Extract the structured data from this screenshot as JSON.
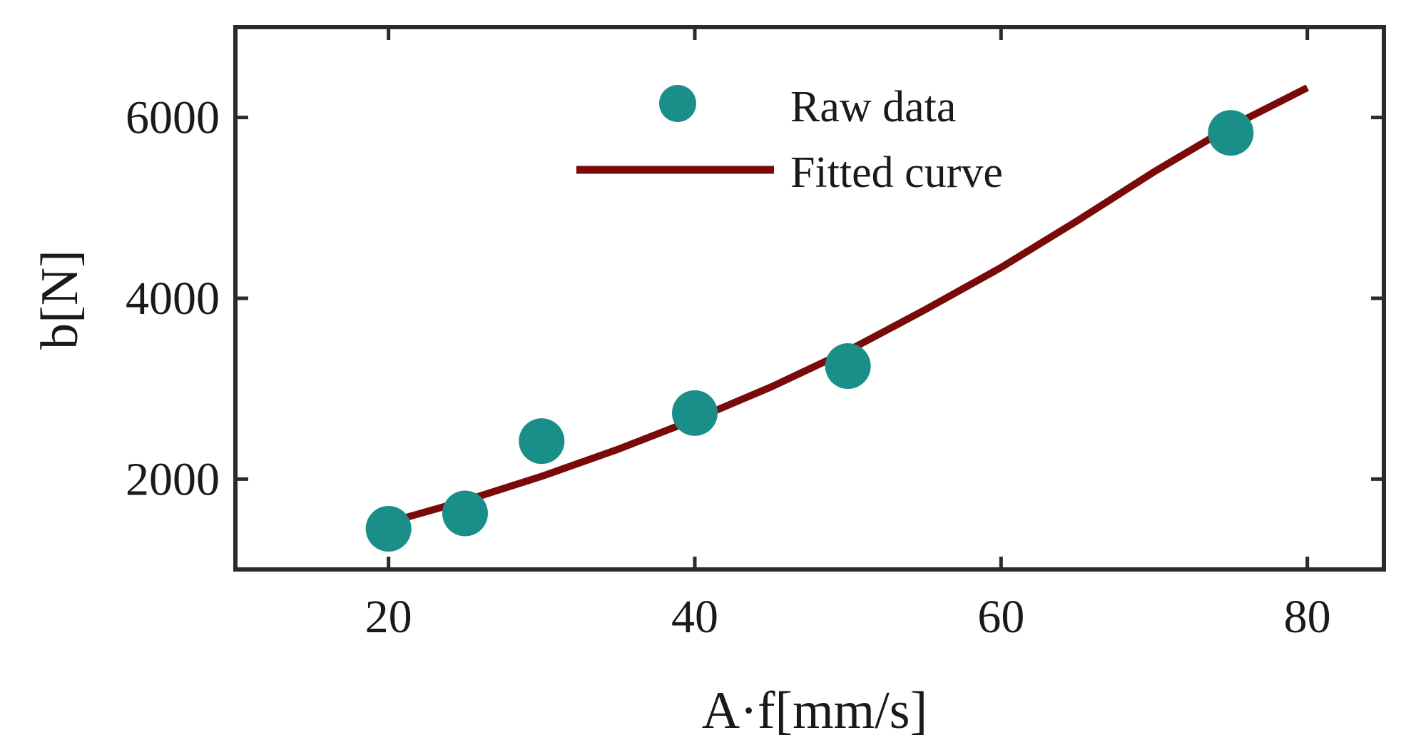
{
  "chart_data": {
    "type": "scatter",
    "title": "",
    "xlabel": "A·f[mm/s]",
    "ylabel": "b[N]",
    "xlim": [
      10,
      85
    ],
    "ylim": [
      1000,
      7000
    ],
    "xticks": [
      20,
      40,
      60,
      80
    ],
    "yticks": [
      2000,
      4000,
      6000
    ],
    "xtick_labels": [
      "20",
      "40",
      "60",
      "80"
    ],
    "ytick_labels": [
      "2000",
      "4000",
      "6000"
    ],
    "grid": false,
    "legend_position": "top-center",
    "series": [
      {
        "name": "Raw data",
        "kind": "scatter",
        "color": "#1a8f8a",
        "x": [
          20,
          25,
          30,
          40,
          50,
          75
        ],
        "y": [
          1450,
          1620,
          2420,
          2730,
          3250,
          5830
        ]
      },
      {
        "name": "Fitted curve",
        "kind": "line",
        "color": "#7a0a0a",
        "model": "exponential",
        "x": [
          20,
          25,
          30,
          35,
          40,
          45,
          50,
          55,
          60,
          65,
          70,
          75,
          80
        ],
        "y": [
          1520,
          1760,
          2030,
          2330,
          2660,
          3020,
          3420,
          3870,
          4340,
          4860,
          5400,
          5900,
          6330
        ]
      }
    ]
  }
}
